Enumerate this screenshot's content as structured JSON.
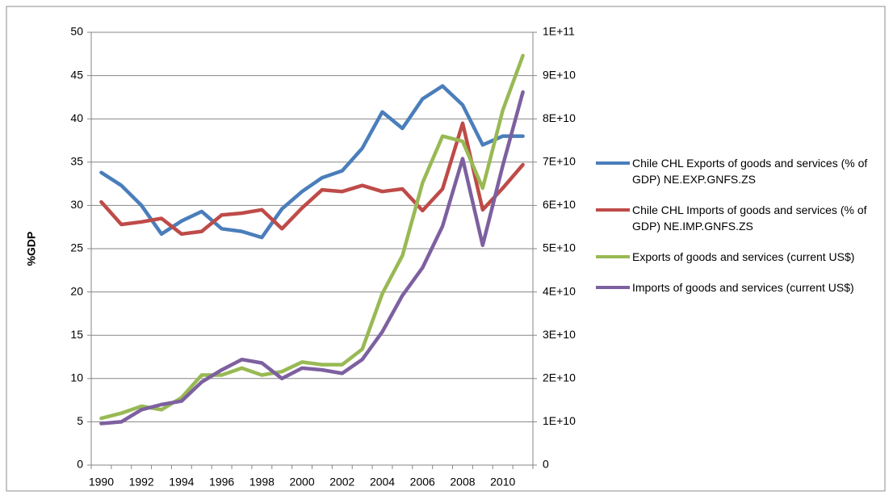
{
  "chart_data": {
    "type": "line",
    "y_label": "%GDP",
    "categories": [
      "1990",
      null,
      "1992",
      null,
      "1994",
      null,
      "1996",
      null,
      "1998",
      null,
      "2000",
      null,
      "2002",
      null,
      "2004",
      null,
      "2006",
      null,
      "2008",
      null,
      "2010",
      null
    ],
    "ylim": [
      0,
      50
    ],
    "yticks": [
      0,
      5,
      10,
      15,
      20,
      25,
      30,
      35,
      40,
      45,
      50
    ],
    "y2lim": [
      0,
      100000000000
    ],
    "y2ticks": [
      0,
      {
        "value": 10000000000,
        "label": "1E+10"
      },
      {
        "value": 20000000000,
        "label": "2E+10"
      },
      {
        "value": 30000000000,
        "label": "3E+10"
      },
      {
        "value": 40000000000,
        "label": "4E+10"
      },
      {
        "value": 50000000000,
        "label": "5E+10"
      },
      {
        "value": 60000000000,
        "label": "6E+10"
      },
      {
        "value": 70000000000,
        "label": "7E+10"
      },
      {
        "value": 80000000000,
        "label": "8E+10"
      },
      {
        "value": 90000000000,
        "label": "9E+10"
      },
      {
        "value": 100000000000,
        "label": "1E+11"
      }
    ],
    "grid": true,
    "legend": "right",
    "series": [
      {
        "name": "Chile CHL Exports of goods and services (% of GDP) NE.EXP.GNFS.ZS",
        "color": "#4a7ebb",
        "values": [
          33.8,
          32.3,
          30,
          26.7,
          28.2,
          29.3,
          27.3,
          27.0,
          26.3,
          29.6,
          31.6,
          33.2,
          34.0,
          36.6,
          40.8,
          38.9,
          42.3,
          43.8,
          41.6,
          37.0,
          38.0,
          38.0
        ]
      },
      {
        "name": "Chile CHL Imports of goods and services (% of GDP) NE.IMP.GNFS.ZS",
        "color": "#be4b48",
        "values": [
          30.4,
          27.8,
          28.1,
          28.5,
          26.7,
          27.0,
          28.9,
          29.1,
          29.5,
          27.3,
          29.7,
          31.8,
          31.6,
          32.3,
          31.6,
          31.9,
          29.4,
          31.9,
          39.5,
          29.5,
          32.0,
          34.7
        ]
      },
      {
        "name": "Exports of goods and services (current US$)",
        "color": "#98b954",
        "axis": "y2",
        "values": [
          10800000000,
          12000000000,
          13600000000,
          12800000000,
          15600000000,
          20800000000,
          20800000000,
          22400000000,
          20800000000,
          21600000000,
          23800000000,
          23200000000,
          23200000000,
          26800000000,
          39600000000,
          48400000000,
          65200000000,
          76000000000,
          74800000000,
          64000000000,
          82000000000,
          94600000000
        ]
      },
      {
        "name": "Imports of goods and services (current US$)",
        "color": "#7d60a0",
        "axis": "y2",
        "values": [
          9600000000,
          10000000000,
          12800000000,
          14000000000,
          14800000000,
          19200000000,
          22000000000,
          24400000000,
          23600000000,
          20000000000,
          22400000000,
          22000000000,
          21200000000,
          24400000000,
          30800000000,
          39200000000,
          45600000000,
          55200000000,
          70800000000,
          50800000000,
          69200000000,
          86200000000
        ]
      }
    ]
  }
}
